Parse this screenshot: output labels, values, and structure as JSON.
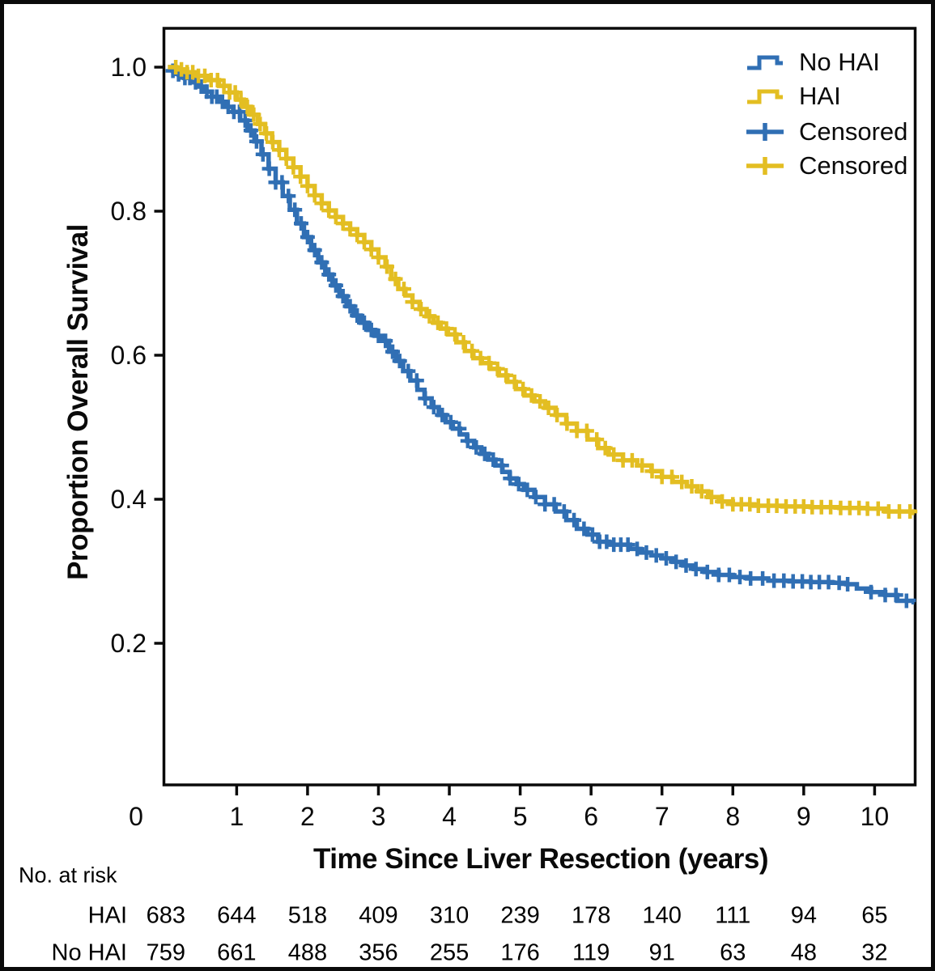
{
  "chart_data": {
    "type": "line",
    "subtype": "kaplan-meier-step",
    "title": "",
    "xlabel": "Time Since Liver Resection (years)",
    "ylabel": "Proportion Overall Survival",
    "xlim": [
      0,
      10.57
    ],
    "ylim": [
      0,
      1.05
    ],
    "grid": false,
    "x_ticks": {
      "values": [
        0,
        1,
        2,
        3,
        4,
        5,
        6,
        7,
        8,
        9,
        10
      ],
      "labels": [
        "0",
        "1",
        "2",
        "3",
        "4",
        "5",
        "6",
        "7",
        "8",
        "9",
        "10"
      ]
    },
    "y_ticks": {
      "values": [
        1.0,
        0.8,
        0.6,
        0.4,
        0.2
      ],
      "labels": [
        "1.0",
        "0.8",
        "0.6",
        "0.4",
        "0.2"
      ]
    },
    "legend": [
      {
        "label": "No HAI",
        "glyph": "step-line",
        "color": "#306FB4"
      },
      {
        "label": "HAI",
        "glyph": "step-line",
        "color": "#E3BE22"
      },
      {
        "label": "Censored",
        "glyph": "plus-mark",
        "color": "#306FB4"
      },
      {
        "label": "Censored",
        "glyph": "plus-mark",
        "color": "#E3BE22"
      }
    ],
    "series": [
      {
        "name": "No HAI",
        "color": "#306FB4",
        "points": [
          [
            0.03,
            1.0
          ],
          [
            0.1,
            0.995
          ],
          [
            0.18,
            0.99
          ],
          [
            0.26,
            0.985
          ],
          [
            0.35,
            0.979
          ],
          [
            0.45,
            0.973
          ],
          [
            0.55,
            0.966
          ],
          [
            0.65,
            0.959
          ],
          [
            0.75,
            0.952
          ],
          [
            0.85,
            0.945
          ],
          [
            0.95,
            0.938
          ],
          [
            1.05,
            0.926
          ],
          [
            1.15,
            0.912
          ],
          [
            1.25,
            0.897
          ],
          [
            1.35,
            0.879
          ],
          [
            1.45,
            0.859
          ],
          [
            1.55,
            0.84
          ],
          [
            1.65,
            0.821
          ],
          [
            1.75,
            0.802
          ],
          [
            1.85,
            0.783
          ],
          [
            1.95,
            0.764
          ],
          [
            2.05,
            0.746
          ],
          [
            2.15,
            0.729
          ],
          [
            2.25,
            0.712
          ],
          [
            2.35,
            0.697
          ],
          [
            2.45,
            0.682
          ],
          [
            2.55,
            0.668
          ],
          [
            2.65,
            0.655
          ],
          [
            2.75,
            0.645
          ],
          [
            2.85,
            0.635
          ],
          [
            2.95,
            0.627
          ],
          [
            3.05,
            0.62
          ],
          [
            3.15,
            0.605
          ],
          [
            3.25,
            0.592
          ],
          [
            3.35,
            0.578
          ],
          [
            3.45,
            0.565
          ],
          [
            3.55,
            0.552
          ],
          [
            3.65,
            0.54
          ],
          [
            3.75,
            0.528
          ],
          [
            3.85,
            0.517
          ],
          [
            3.95,
            0.507
          ],
          [
            4.05,
            0.498
          ],
          [
            4.15,
            0.49
          ],
          [
            4.25,
            0.481
          ],
          [
            4.35,
            0.472
          ],
          [
            4.45,
            0.463
          ],
          [
            4.55,
            0.455
          ],
          [
            4.65,
            0.447
          ],
          [
            4.75,
            0.438
          ],
          [
            4.85,
            0.429
          ],
          [
            4.95,
            0.421
          ],
          [
            5.05,
            0.413
          ],
          [
            5.2,
            0.403
          ],
          [
            5.35,
            0.393
          ],
          [
            5.5,
            0.383
          ],
          [
            5.65,
            0.371
          ],
          [
            5.8,
            0.359
          ],
          [
            5.95,
            0.351
          ],
          [
            6.1,
            0.341
          ],
          [
            6.25,
            0.337
          ],
          [
            6.55,
            0.331
          ],
          [
            6.7,
            0.326
          ],
          [
            6.85,
            0.322
          ],
          [
            7.0,
            0.318
          ],
          [
            7.15,
            0.313
          ],
          [
            7.3,
            0.308
          ],
          [
            7.45,
            0.303
          ],
          [
            7.6,
            0.299
          ],
          [
            7.8,
            0.295
          ],
          [
            8.0,
            0.292
          ],
          [
            8.2,
            0.29
          ],
          [
            8.5,
            0.287
          ],
          [
            8.8,
            0.286
          ],
          [
            9.1,
            0.285
          ],
          [
            9.4,
            0.284
          ],
          [
            9.6,
            0.282
          ],
          [
            9.75,
            0.276
          ],
          [
            9.95,
            0.271
          ],
          [
            10.15,
            0.267
          ],
          [
            10.32,
            0.259
          ],
          [
            10.55,
            0.257
          ]
        ],
        "censor_times": [
          0.1,
          0.18,
          0.27,
          0.34,
          0.42,
          0.5,
          0.58,
          0.65,
          0.72,
          0.8,
          0.88,
          0.96,
          1.04,
          1.12,
          1.2,
          1.28,
          1.37,
          1.46,
          1.55,
          1.64,
          1.73,
          1.82,
          1.91,
          2.0,
          2.1,
          2.2,
          2.3,
          2.4,
          2.5,
          2.6,
          2.7,
          2.8,
          2.9,
          3.0,
          3.1,
          3.2,
          3.3,
          3.42,
          3.54,
          3.66,
          3.78,
          3.9,
          4.02,
          4.14,
          4.26,
          4.38,
          4.5,
          4.62,
          4.74,
          4.86,
          4.98,
          5.1,
          5.22,
          5.35,
          5.48,
          5.62,
          5.76,
          5.9,
          6.02,
          6.12,
          6.22,
          6.32,
          6.42,
          6.52,
          6.65,
          6.78,
          6.92,
          7.06,
          7.2,
          7.34,
          7.48,
          7.64,
          7.8,
          7.95,
          8.1,
          8.25,
          8.42,
          8.58,
          8.72,
          8.85,
          8.98,
          9.1,
          9.22,
          9.35,
          9.5,
          9.62,
          9.95,
          10.15,
          10.3,
          10.45
        ]
      },
      {
        "name": "HAI",
        "color": "#E3BE22",
        "points": [
          [
            0.03,
            1.0
          ],
          [
            0.15,
            0.997
          ],
          [
            0.3,
            0.993
          ],
          [
            0.45,
            0.988
          ],
          [
            0.6,
            0.982
          ],
          [
            0.75,
            0.974
          ],
          [
            0.9,
            0.965
          ],
          [
            1.0,
            0.955
          ],
          [
            1.1,
            0.945
          ],
          [
            1.2,
            0.934
          ],
          [
            1.3,
            0.921
          ],
          [
            1.4,
            0.908
          ],
          [
            1.5,
            0.896
          ],
          [
            1.6,
            0.885
          ],
          [
            1.7,
            0.873
          ],
          [
            1.8,
            0.861
          ],
          [
            1.9,
            0.848
          ],
          [
            2.0,
            0.835
          ],
          [
            2.1,
            0.822
          ],
          [
            2.2,
            0.811
          ],
          [
            2.3,
            0.801
          ],
          [
            2.4,
            0.792
          ],
          [
            2.5,
            0.783
          ],
          [
            2.6,
            0.775
          ],
          [
            2.7,
            0.767
          ],
          [
            2.8,
            0.757
          ],
          [
            2.9,
            0.747
          ],
          [
            3.0,
            0.736
          ],
          [
            3.1,
            0.723
          ],
          [
            3.18,
            0.706
          ],
          [
            3.28,
            0.692
          ],
          [
            3.38,
            0.683
          ],
          [
            3.48,
            0.674
          ],
          [
            3.58,
            0.664
          ],
          [
            3.68,
            0.654
          ],
          [
            3.78,
            0.645
          ],
          [
            3.88,
            0.637
          ],
          [
            3.98,
            0.629
          ],
          [
            4.1,
            0.618
          ],
          [
            4.22,
            0.606
          ],
          [
            4.34,
            0.596
          ],
          [
            4.46,
            0.589
          ],
          [
            4.58,
            0.581
          ],
          [
            4.7,
            0.572
          ],
          [
            4.82,
            0.563
          ],
          [
            4.94,
            0.553
          ],
          [
            5.06,
            0.544
          ],
          [
            5.2,
            0.536
          ],
          [
            5.35,
            0.527
          ],
          [
            5.5,
            0.517
          ],
          [
            5.65,
            0.505
          ],
          [
            5.8,
            0.495
          ],
          [
            5.95,
            0.483
          ],
          [
            6.1,
            0.471
          ],
          [
            6.25,
            0.462
          ],
          [
            6.45,
            0.454
          ],
          [
            6.65,
            0.447
          ],
          [
            6.85,
            0.439
          ],
          [
            7.0,
            0.431
          ],
          [
            7.15,
            0.424
          ],
          [
            7.35,
            0.418
          ],
          [
            7.5,
            0.411
          ],
          [
            7.65,
            0.403
          ],
          [
            7.8,
            0.397
          ],
          [
            8.0,
            0.393
          ],
          [
            8.3,
            0.391
          ],
          [
            8.7,
            0.39
          ],
          [
            9.1,
            0.389
          ],
          [
            9.5,
            0.388
          ],
          [
            9.9,
            0.387
          ],
          [
            10.15,
            0.383
          ],
          [
            10.55,
            0.381
          ]
        ],
        "censor_times": [
          0.14,
          0.22,
          0.3,
          0.38,
          0.46,
          0.55,
          0.64,
          0.73,
          0.82,
          0.9,
          0.98,
          1.06,
          1.15,
          1.24,
          1.33,
          1.42,
          1.51,
          1.6,
          1.7,
          1.8,
          1.9,
          2.0,
          2.1,
          2.2,
          2.3,
          2.4,
          2.5,
          2.6,
          2.7,
          2.8,
          2.9,
          3.0,
          3.12,
          3.24,
          3.36,
          3.48,
          3.6,
          3.72,
          3.84,
          3.96,
          4.08,
          4.2,
          4.32,
          4.44,
          4.56,
          4.68,
          4.8,
          4.92,
          5.04,
          5.16,
          5.28,
          5.4,
          5.52,
          5.66,
          5.8,
          5.94,
          6.08,
          6.2,
          6.32,
          6.45,
          6.58,
          6.72,
          6.86,
          7.0,
          7.14,
          7.28,
          7.42,
          7.56,
          7.7,
          7.85,
          8.0,
          8.12,
          8.24,
          8.36,
          8.5,
          8.62,
          8.75,
          8.88,
          9.0,
          9.12,
          9.25,
          9.38,
          9.52,
          9.65,
          9.78,
          9.9,
          10.05,
          10.2,
          10.35,
          10.5
        ]
      }
    ],
    "risk_table": {
      "title": "No. at risk",
      "time_points": [
        0,
        1,
        2,
        3,
        4,
        5,
        6,
        7,
        8,
        9,
        10
      ],
      "rows": [
        {
          "label": "HAI",
          "counts": [
            683,
            644,
            518,
            409,
            310,
            239,
            178,
            140,
            111,
            94,
            65
          ]
        },
        {
          "label": "No HAI",
          "counts": [
            759,
            661,
            488,
            356,
            255,
            176,
            119,
            91,
            63,
            48,
            32
          ]
        }
      ]
    }
  }
}
